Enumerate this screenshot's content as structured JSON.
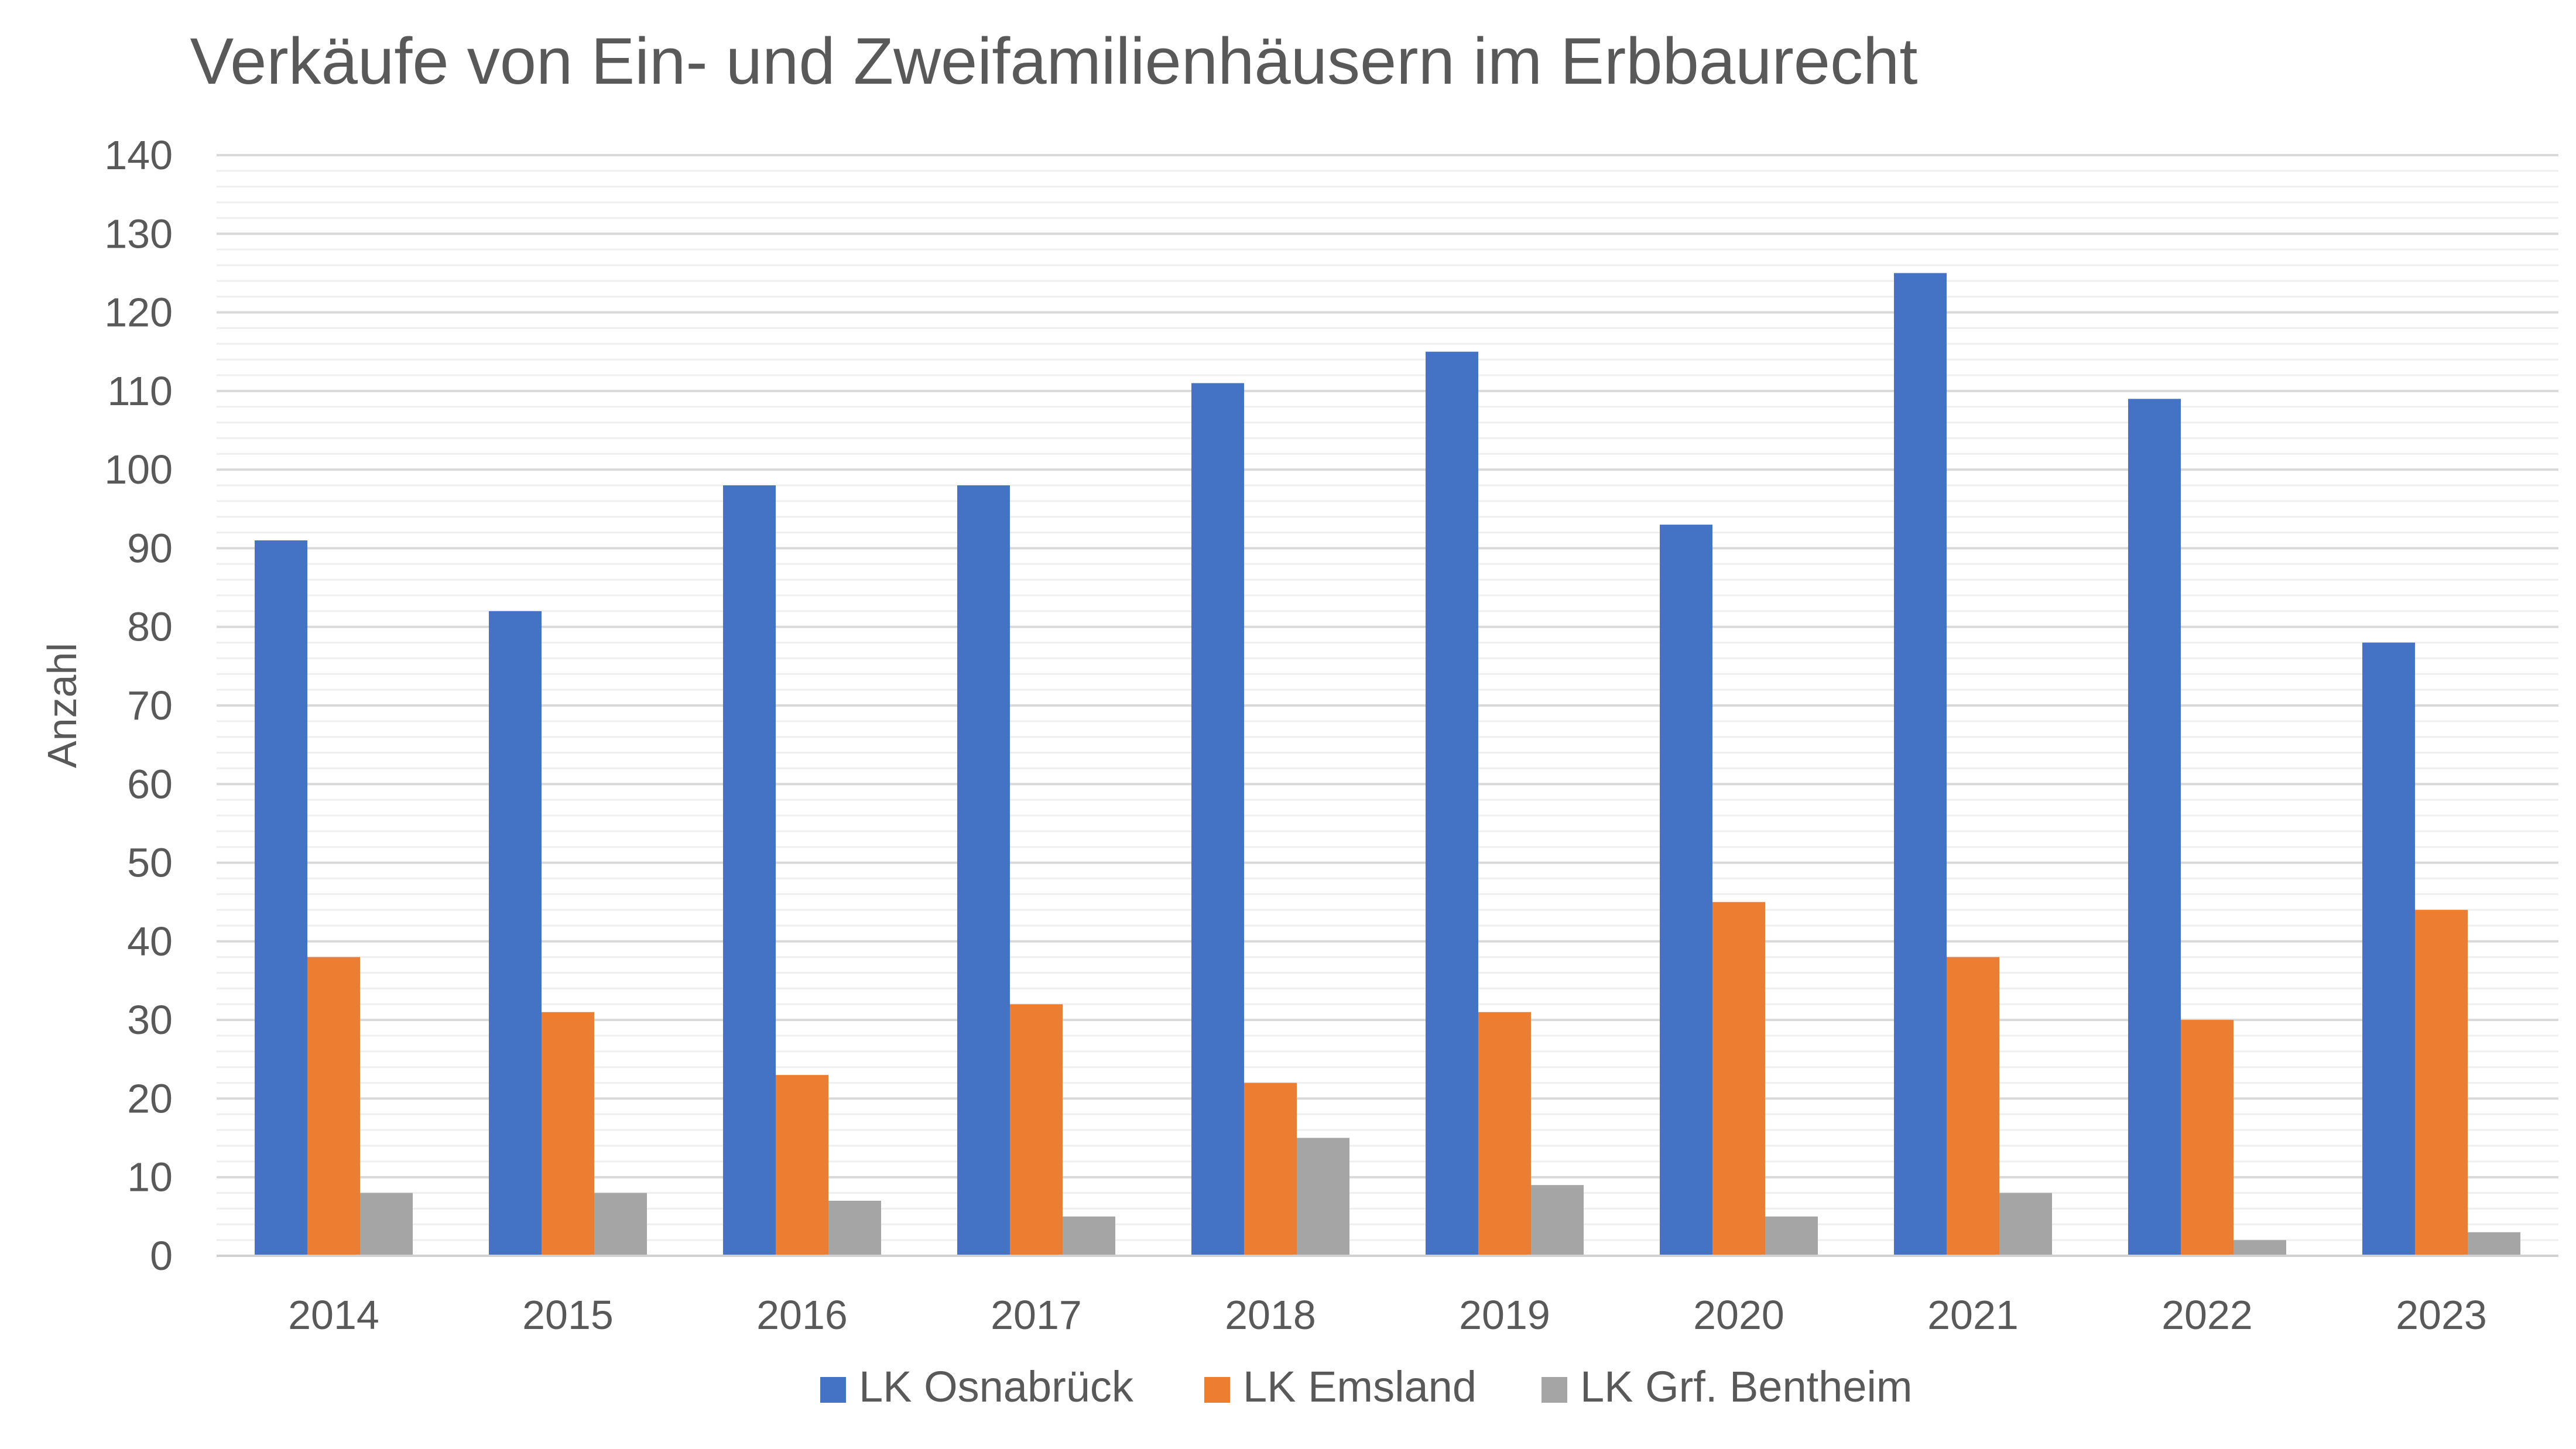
{
  "chart_data": {
    "type": "bar",
    "title": "Verkäufe von Ein- und Zweifamilienhäusern im Erbbaurecht",
    "xlabel": "",
    "ylabel": "Anzahl",
    "ylim": [
      0,
      140
    ],
    "ytick_step": 10,
    "grid": true,
    "legend_position": "bottom",
    "categories": [
      "2014",
      "2015",
      "2016",
      "2017",
      "2018",
      "2019",
      "2020",
      "2021",
      "2022",
      "2023"
    ],
    "series": [
      {
        "name": "LK Osnabrück",
        "color": "#4472C4",
        "values": [
          91,
          82,
          98,
          98,
          111,
          115,
          93,
          125,
          109,
          78
        ]
      },
      {
        "name": "LK Emsland",
        "color": "#ED7D31",
        "values": [
          38,
          31,
          23,
          32,
          22,
          31,
          45,
          38,
          30,
          44
        ]
      },
      {
        "name": "LK Grf. Bentheim",
        "color": "#A5A5A5",
        "values": [
          8,
          8,
          7,
          5,
          15,
          9,
          5,
          8,
          2,
          3
        ]
      }
    ]
  }
}
